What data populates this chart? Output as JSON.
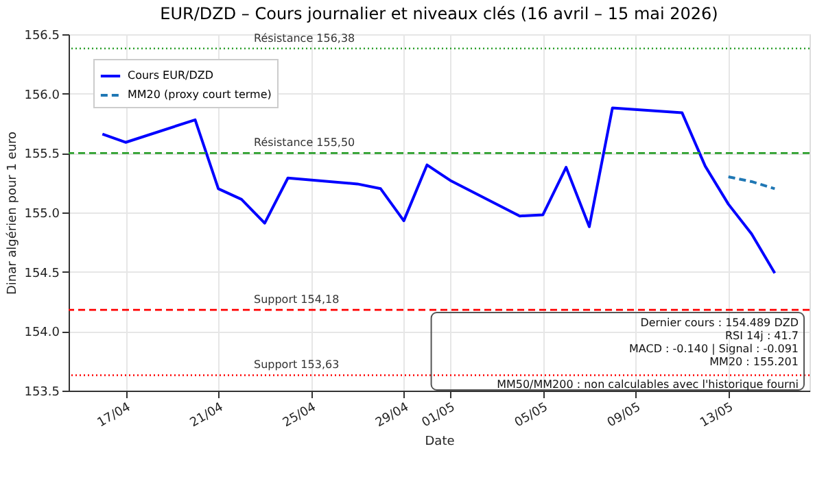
{
  "chart_data": {
    "type": "line",
    "title": "EUR/DZD – Cours journalier et niveaux clés (16 avril – 15 mai 2026)",
    "xlabel": "Date",
    "ylabel": "Dinar algérien pour 1 euro",
    "series": [
      {
        "name": "Cours EUR/DZD",
        "color": "#0000ff",
        "line_style": "solid",
        "x": [
          "2026-04-16",
          "2026-04-17",
          "2026-04-20",
          "2026-04-21",
          "2026-04-22",
          "2026-04-23",
          "2026-04-24",
          "2026-04-27",
          "2026-04-28",
          "2026-04-29",
          "2026-04-30",
          "2026-05-01",
          "2026-05-04",
          "2026-05-05",
          "2026-05-06",
          "2026-05-07",
          "2026-05-08",
          "2026-05-11",
          "2026-05-12",
          "2026-05-13",
          "2026-05-14",
          "2026-05-15"
        ],
        "values": [
          155.66,
          155.59,
          155.78,
          155.2,
          155.11,
          154.91,
          155.29,
          155.24,
          155.2,
          154.93,
          155.4,
          155.27,
          154.97,
          154.98,
          155.38,
          154.88,
          155.88,
          155.84,
          155.39,
          155.07,
          154.82,
          154.49
        ]
      },
      {
        "name": "MM20 (proxy court terme)",
        "color": "#1f77b4",
        "line_style": "dashed",
        "x": [
          "2026-05-13",
          "2026-05-14",
          "2026-05-15"
        ],
        "values": [
          155.3,
          155.26,
          155.2
        ]
      }
    ],
    "xlim": [
      "2026-04-14T13:00",
      "2026-05-16T12:00"
    ],
    "xticks": [
      {
        "value": "2026-04-17",
        "label": "17/04"
      },
      {
        "value": "2026-04-21",
        "label": "21/04"
      },
      {
        "value": "2026-04-25",
        "label": "25/04"
      },
      {
        "value": "2026-04-29",
        "label": "29/04"
      },
      {
        "value": "2026-05-01",
        "label": "01/05"
      },
      {
        "value": "2026-05-05",
        "label": "05/05"
      },
      {
        "value": "2026-05-09",
        "label": "09/05"
      },
      {
        "value": "2026-05-13",
        "label": "13/05"
      }
    ],
    "ylim": [
      153.5,
      156.5
    ],
    "yticks": [
      153.5,
      {
        "value": 154,
        "label": "154.0"
      },
      154.5,
      {
        "value": 155,
        "label": "155.0"
      },
      155.5,
      {
        "value": 156,
        "label": "156.0"
      },
      156.5
    ],
    "ref_lines": [
      {
        "axis": "y",
        "value": 156.38,
        "label": "Résistance 156,38",
        "color": "#2ca02c",
        "line_style": "dotted"
      },
      {
        "axis": "y",
        "value": 155.5,
        "label": "Résistance 155,50",
        "color": "#2ca02c",
        "line_style": "dashed"
      },
      {
        "axis": "y",
        "value": 154.18,
        "label": "Support 154,18",
        "color": "#ff0000",
        "line_style": "dashed"
      },
      {
        "axis": "y",
        "value": 153.63,
        "label": "Support 153,63",
        "color": "#ff0000",
        "line_style": "dotted"
      }
    ],
    "annotations": [
      "Dernier cours : 154.489 DZD",
      "RSI 14j : 41.7",
      "MACD : -0.140 | Signal : -0.091",
      "MM20 : 155.201",
      "MM50/MM200 : non calculables avec l'historique fourni"
    ],
    "grid": true,
    "legend": "top left",
    "marker": "none"
  }
}
